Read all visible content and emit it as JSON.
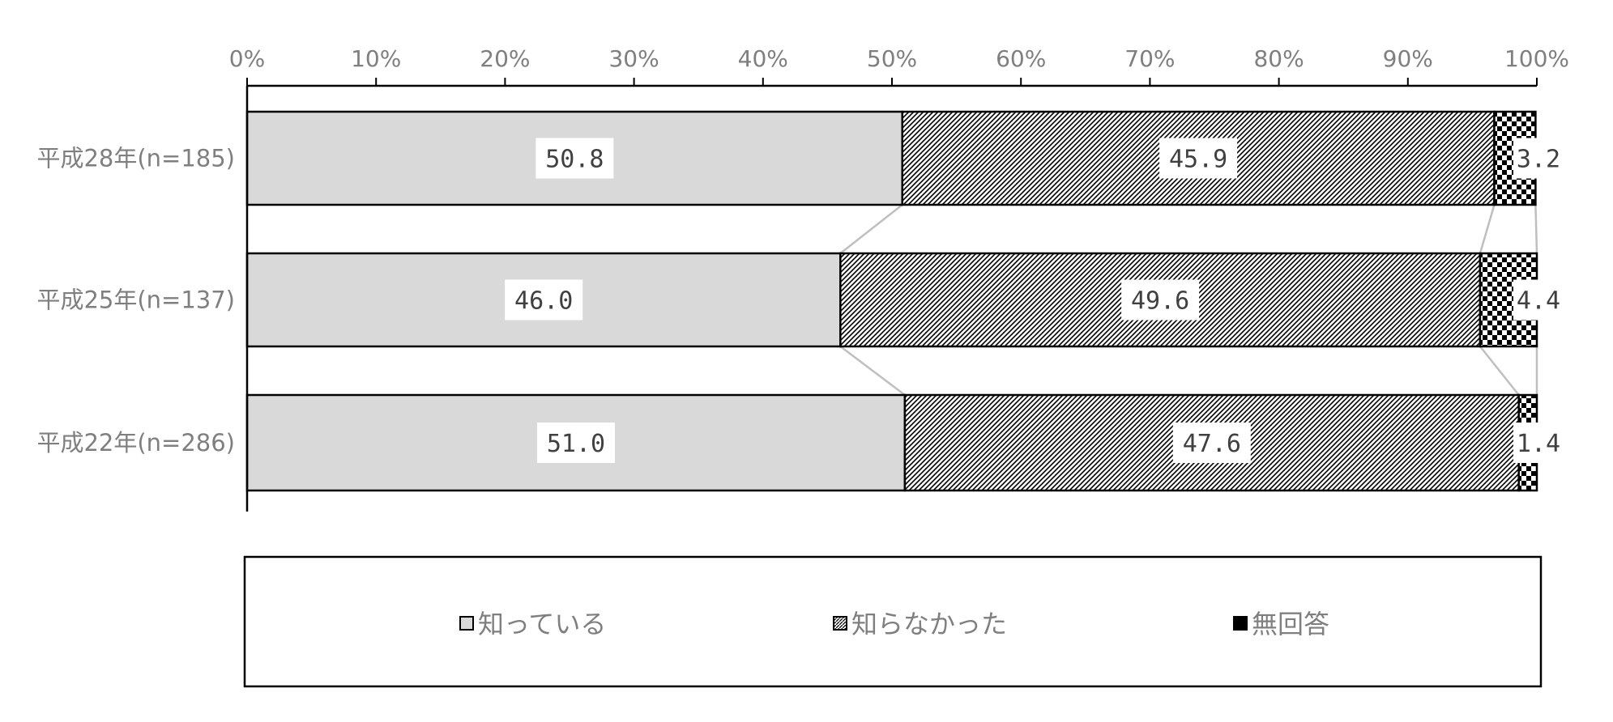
{
  "chart_data": {
    "type": "bar",
    "orientation": "horizontal",
    "stacked": true,
    "categories": [
      "平成28年(n=185)",
      "平成25年(n=137)",
      "平成22年(n=286)"
    ],
    "series": [
      {
        "name": "知っている",
        "values": [
          50.8,
          46.0,
          51.0
        ],
        "labels": [
          "50.8",
          "46.0",
          "51.0"
        ],
        "fill": "#d9d9d9",
        "pattern": "solid"
      },
      {
        "name": "知らなかった",
        "values": [
          45.9,
          49.6,
          47.6
        ],
        "labels": [
          "45.9",
          "49.6",
          "47.6"
        ],
        "fill": "#ffffff",
        "pattern": "diagonal-hatch"
      },
      {
        "name": "無回答",
        "values": [
          3.2,
          4.4,
          1.4
        ],
        "labels": [
          "3.2",
          "4.4",
          "1.4"
        ],
        "fill": "#000000",
        "pattern": "checker"
      }
    ],
    "xlim": [
      0,
      100
    ],
    "x_ticks": [
      "0%",
      "10%",
      "20%",
      "30%",
      "40%",
      "50%",
      "60%",
      "70%",
      "80%",
      "90%",
      "100%"
    ],
    "axis_position": "top",
    "series_lines": true,
    "legend_position": "bottom",
    "grid": false,
    "colors": {
      "axis": "#000000",
      "text": "#7f7f7f",
      "series_line": "#bfbfbf"
    }
  }
}
